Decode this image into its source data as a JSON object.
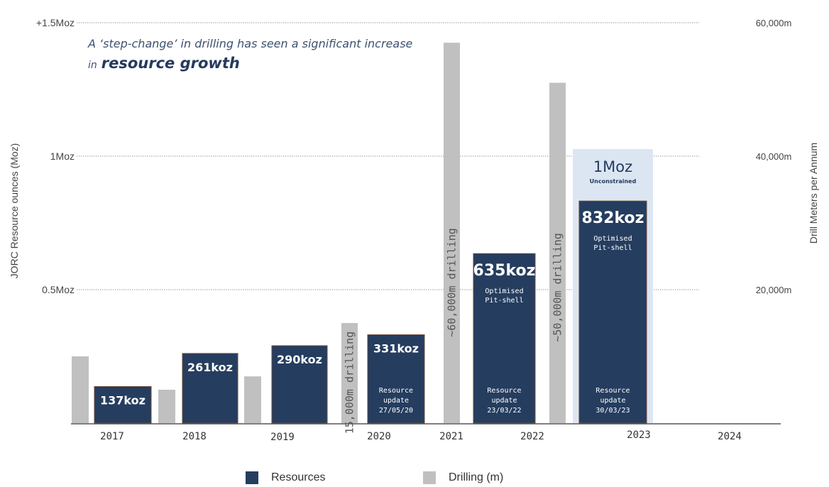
{
  "chart_data": {
    "type": "bar",
    "headline": {
      "line1": "A ‘step-change’ in drilling has seen a significant increase",
      "line2_prefix": "in",
      "line2_emphasis": "resource growth"
    },
    "y_left": {
      "label": "JORC Resource ounces (Moz)",
      "ticks": [
        {
          "value": 0.5,
          "label": "0.5Moz"
        },
        {
          "value": 1.0,
          "label": "1Moz"
        },
        {
          "value": 1.5,
          "label": "+1.5Moz"
        }
      ],
      "range": [
        0,
        1.5
      ]
    },
    "y_right": {
      "label": "Drill Meters per Annum",
      "ticks": [
        {
          "value": 20000,
          "label": "20,000m"
        },
        {
          "value": 40000,
          "label": "40,000m"
        },
        {
          "value": 60000,
          "label": "60,000m"
        }
      ],
      "range": [
        0,
        60000
      ]
    },
    "years": [
      "2017",
      "2018",
      "2019",
      "2020",
      "2021",
      "2022",
      "2023",
      "2024"
    ],
    "resources": [
      {
        "year": "2017",
        "value_moz": 0.137,
        "label": "137koz"
      },
      {
        "year": "2018",
        "value_moz": 0.261,
        "label": "261koz"
      },
      {
        "year": "2019",
        "value_moz": 0.29,
        "label": "290koz"
      },
      {
        "year": "2020",
        "value_moz": 0.331,
        "label": "331koz",
        "note": [
          "Resource",
          "update",
          "27/05/20"
        ]
      },
      {
        "year": "2022",
        "value_moz": 0.635,
        "label": "635koz",
        "subnote": [
          "Optimised",
          "Pit-shell"
        ],
        "note": [
          "Resource",
          "update",
          "23/03/22"
        ]
      },
      {
        "year": "2023",
        "value_moz": 0.832,
        "label": "832koz",
        "subnote": [
          "Optimised",
          "Pit-shell"
        ],
        "note": [
          "Resource",
          "update",
          "30/03/23"
        ]
      }
    ],
    "unconstrained": {
      "year": "2023",
      "value_moz": 1.0,
      "label": "1Moz",
      "sublabel": "Unconstrained"
    },
    "drilling": [
      {
        "year": "2017",
        "value_m": 10000,
        "label": ""
      },
      {
        "year": "2018",
        "value_m": 5000,
        "label": ""
      },
      {
        "year": "2019",
        "value_m": 7000,
        "label": ""
      },
      {
        "year": "2020",
        "value_m": 15000,
        "label": "15,000m drilling"
      },
      {
        "year": "2021",
        "value_m": 57000,
        "label": "~60,000m drilling"
      },
      {
        "year": "2022",
        "value_m": 51000,
        "label": "~50,000m drilling"
      }
    ],
    "legend": [
      {
        "name": "Resources",
        "color": "#253d5f"
      },
      {
        "name": "Drilling (m)",
        "color": "#c0c0c0"
      }
    ],
    "colors": {
      "resource": "#253d5f",
      "drilling": "#c0c0c0",
      "unconstrained": "#dce6f2",
      "grid": "#9a9a9a"
    }
  }
}
